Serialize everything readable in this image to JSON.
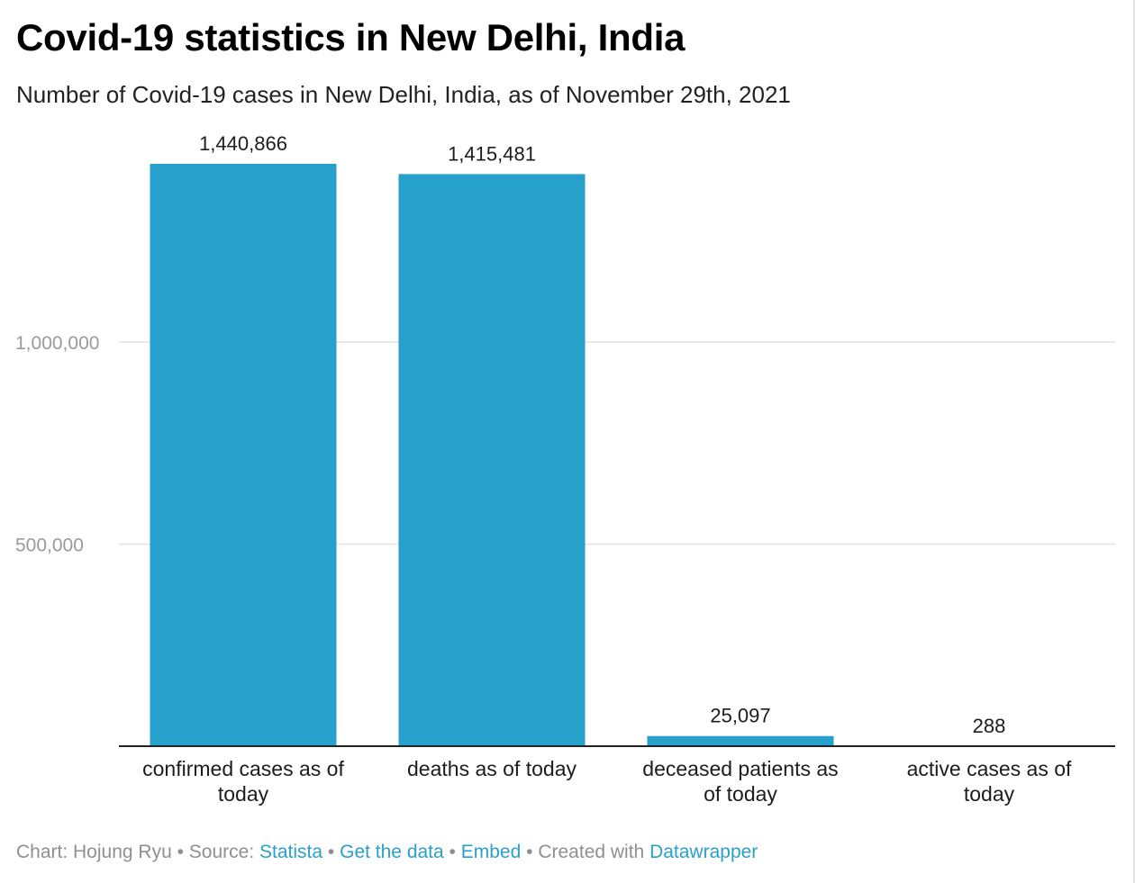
{
  "header": {
    "title": "Covid-19 statistics in New Delhi, India",
    "subtitle": "Number of Covid-19 cases in New Delhi, India, as of November 29th, 2021"
  },
  "chart_data": {
    "type": "bar",
    "title": "Covid-19 statistics in New Delhi, India",
    "subtitle": "Number of Covid-19 cases in New Delhi, India, as of November 29th, 2021",
    "categories": [
      [
        "confirmed cases as of",
        "today"
      ],
      [
        "deaths as of today"
      ],
      [
        "deceased patients as",
        "of today"
      ],
      [
        "active cases as of",
        "today"
      ]
    ],
    "values": [
      1440866,
      1415481,
      25097,
      288
    ],
    "value_labels": [
      "1,440,866",
      "1,415,481",
      "25,097",
      "288"
    ],
    "yticks": [
      500000,
      1000000
    ],
    "ytick_labels": [
      "500,000",
      "1,000,000"
    ],
    "ylim": [
      0,
      1440866
    ],
    "bar_color": "#27a1cc",
    "grid": true,
    "xlabel": "",
    "ylabel": ""
  },
  "footer": {
    "chart_prefix": "Chart: Hojung Ryu",
    "source_prefix": "Source:",
    "source_link": "Statista",
    "get_data": "Get the data",
    "embed": "Embed",
    "created_with": "Created with",
    "datawrapper": "Datawrapper",
    "separator": "•",
    "link_color": "#2aa0c9"
  }
}
